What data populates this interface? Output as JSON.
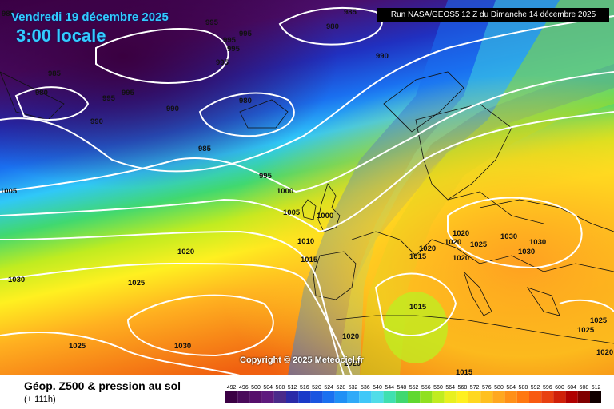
{
  "header": {
    "date": "Vendredi 19 décembre 2025",
    "time": "3:00 locale",
    "run": "Run NASA/GEOS5 12 Z du Dimanche 14 décembre 2025"
  },
  "copyright": "Copyright © 2025 Meteociel.fr",
  "footer": {
    "title": "Géop. Z500 & pression au sol",
    "subtitle": "(+ 111h)"
  },
  "scale": {
    "values": [
      "492",
      "496",
      "500",
      "504",
      "508",
      "512",
      "516",
      "520",
      "524",
      "528",
      "532",
      "536",
      "540",
      "544",
      "548",
      "552",
      "556",
      "560",
      "564",
      "568",
      "572",
      "576",
      "580",
      "584",
      "588",
      "592",
      "596",
      "600",
      "604",
      "608",
      "612"
    ],
    "colors": [
      "#3b0044",
      "#4a0a5a",
      "#560f6b",
      "#5e1a7e",
      "#4a2a8a",
      "#2a2aa8",
      "#1a3ac8",
      "#1a55e0",
      "#1a70f0",
      "#2090f5",
      "#30aaf8",
      "#40c8f8",
      "#50dde8",
      "#40e0b0",
      "#40d870",
      "#60d830",
      "#90e020",
      "#c0ec20",
      "#e8f020",
      "#fff020",
      "#ffd820",
      "#ffc020",
      "#ffa820",
      "#ff9018",
      "#ff7810",
      "#f85a10",
      "#e84010",
      "#d02008",
      "#b00000",
      "#800000",
      "#100000"
    ]
  },
  "isobar_labels": [
    "985",
    "985",
    "980",
    "990",
    "995",
    "995",
    "995",
    "995",
    "995",
    "985",
    "980",
    "995",
    "995",
    "990",
    "990",
    "980",
    "985",
    "995",
    "1000",
    "1005",
    "1000",
    "1005",
    "1010",
    "1015",
    "1020",
    "1025",
    "1030",
    "1025",
    "1030",
    "1020",
    "1020",
    "1020",
    "1025",
    "1030",
    "1030",
    "1030",
    "1020",
    "1015",
    "1020",
    "1020",
    "1015",
    "1025",
    "1025",
    "1015",
    "1020"
  ]
}
